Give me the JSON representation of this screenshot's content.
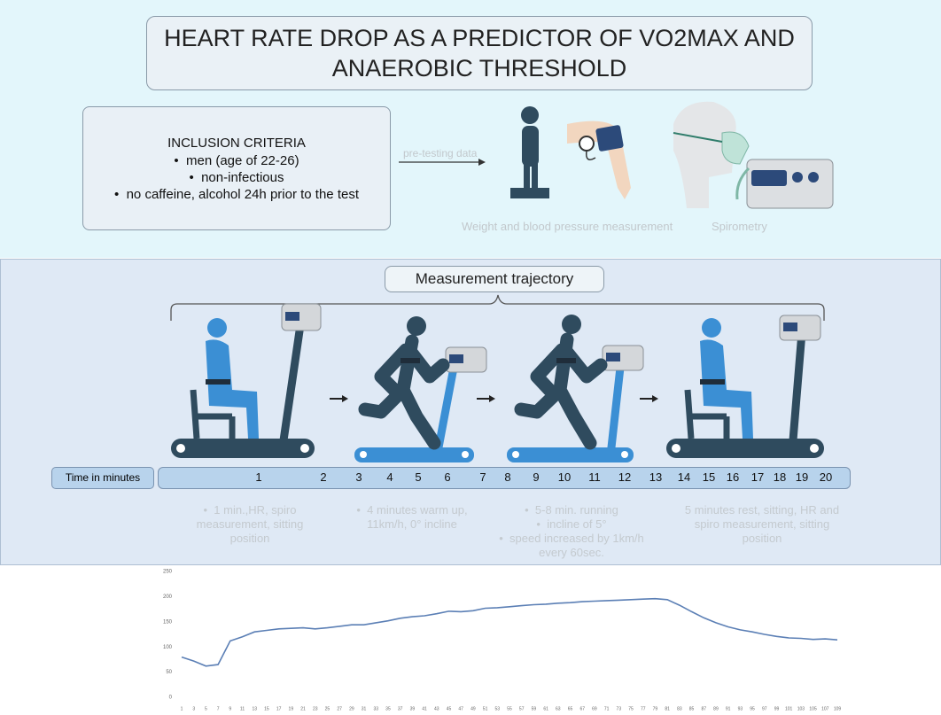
{
  "title_lines": [
    "HEART RATE DROP AS A PREDICTOR OF VO2MAX AND",
    "ANAEROBIC THRESHOLD"
  ],
  "inclusion": {
    "heading": "INCLUSION CRITERIA",
    "items": [
      "men (age of 22-26)",
      "non-infectious",
      "no caffeine, alcohol 24h prior to the test"
    ]
  },
  "pre_testing_label": "pre-testing data",
  "captions": [
    "Weight and blood pressure measurement",
    "Spirometry"
  ],
  "trajectory": {
    "title": "Measurement trajectory",
    "time_label": "Time in minutes",
    "minutes": [
      1,
      2,
      3,
      4,
      5,
      6,
      7,
      8,
      9,
      10,
      11,
      12,
      13,
      14,
      15,
      16,
      17,
      18,
      19,
      20
    ],
    "phases": [
      {
        "items": [
          "1 min.,HR, spiro measurement, sitting position"
        ]
      },
      {
        "items": [
          "4 minutes warm up, 11km/h, 0° incline"
        ]
      },
      {
        "items": [
          "5-8 min. running",
          "incline of 5°",
          "speed increased by 1km/h every 60sec."
        ]
      },
      {
        "text": "5 minutes rest, sitting, HR and spiro measurement, sitting position"
      }
    ]
  },
  "chart_data": {
    "type": "line",
    "x": [
      1,
      3,
      5,
      7,
      9,
      11,
      13,
      15,
      17,
      19,
      21,
      23,
      25,
      27,
      29,
      31,
      33,
      35,
      37,
      39,
      41,
      43,
      45,
      47,
      49,
      51,
      53,
      55,
      57,
      59,
      61,
      63,
      65,
      67,
      69,
      71,
      73,
      75,
      77,
      79,
      81,
      83,
      85,
      87,
      89,
      91,
      93,
      95,
      97,
      99,
      101,
      103,
      105,
      107,
      109
    ],
    "series": [
      {
        "color": "#5b7fb5",
        "values": [
          80,
          72,
          62,
          65,
          112,
          120,
          130,
          133,
          136,
          137,
          138,
          136,
          138,
          141,
          144,
          144,
          148,
          152,
          157,
          160,
          162,
          166,
          171,
          170,
          172,
          177,
          178,
          180,
          182,
          184,
          185,
          187,
          188,
          190,
          191,
          192,
          193,
          194,
          195,
          196,
          194,
          183,
          170,
          158,
          148,
          140,
          134,
          130,
          125,
          121,
          118,
          117,
          115,
          116,
          114
        ]
      }
    ],
    "xlim": [
      1,
      109
    ],
    "ylim": [
      0,
      250
    ],
    "yticks": [
      0,
      50,
      100,
      150,
      200,
      250
    ],
    "grid": false
  }
}
